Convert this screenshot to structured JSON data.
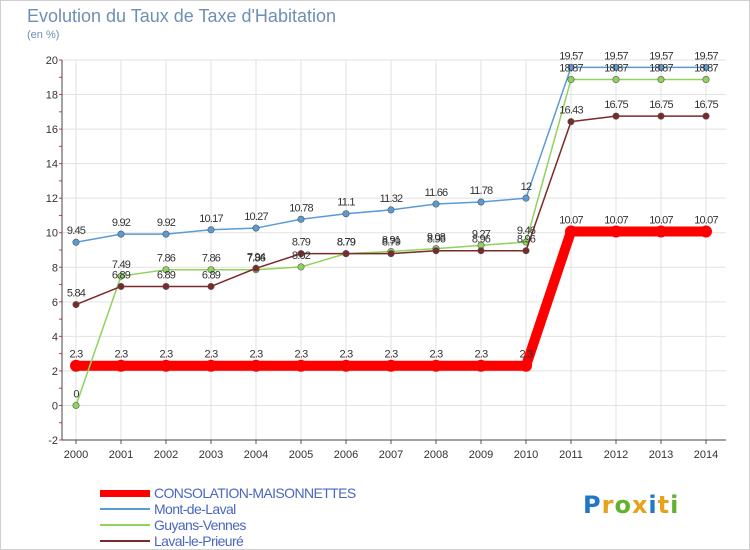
{
  "chart_data": {
    "type": "line",
    "title": "Evolution du Taux de Taxe d'Habitation",
    "subtitle": "(en %)",
    "x": [
      "2000",
      "2001",
      "2002",
      "2003",
      "2004",
      "2005",
      "2006",
      "2007",
      "2008",
      "2009",
      "2010",
      "2011",
      "2012",
      "2013",
      "2014"
    ],
    "ylim": [
      -2,
      20
    ],
    "yticks": [
      -2,
      0,
      2,
      4,
      6,
      8,
      10,
      12,
      14,
      16,
      18,
      20
    ],
    "grid": true,
    "legend": "bottom-left",
    "series": [
      {
        "name": "CONSOLATION-MAISONNETTES",
        "color": "#ff0000",
        "values": [
          2.3,
          2.3,
          2.3,
          2.3,
          2.3,
          2.3,
          2.3,
          2.3,
          2.3,
          2.3,
          2.3,
          10.07,
          10.07,
          10.07,
          10.07
        ],
        "labels": [
          "2.3",
          "2.3",
          "2.3",
          "2.3",
          "2.3",
          "2.3",
          "2.3",
          "2.3",
          "2.3",
          "2.3",
          "2.3",
          "10.07",
          "10.07",
          "10.07",
          "10.07"
        ]
      },
      {
        "name": "Mont-de-Laval",
        "color": "#5b9bd5",
        "values": [
          9.45,
          9.92,
          9.92,
          10.17,
          10.27,
          10.78,
          11.1,
          11.32,
          11.66,
          11.78,
          12,
          19.57,
          19.57,
          19.57,
          19.57
        ],
        "labels": [
          "9.45",
          "9.92",
          "9.92",
          "10.17",
          "10.27",
          "10.78",
          "11.1",
          "11.32",
          "11.66",
          "11.78",
          "12",
          "19.57",
          "19.57",
          "19.57",
          "19.57"
        ]
      },
      {
        "name": "Guyans-Vennes",
        "color": "#8fd35a",
        "values": [
          0,
          7.49,
          7.86,
          7.86,
          7.86,
          8.02,
          8.79,
          8.91,
          9.08,
          9.27,
          9.46,
          18.87,
          18.87,
          18.87,
          18.87
        ],
        "labels": [
          "0",
          "7.49",
          "7.86",
          "7.86",
          "7.86",
          "8.02",
          "8.79",
          "8.91",
          "9.08",
          "9.27",
          "9.46",
          "18.87",
          "18.87",
          "18.87",
          "18.87"
        ]
      },
      {
        "name": "Laval-le-Prieuré",
        "color": "#7a2a2a",
        "values": [
          5.84,
          6.89,
          6.89,
          6.89,
          7.94,
          8.79,
          8.79,
          8.79,
          8.96,
          8.96,
          8.96,
          16.43,
          16.75,
          16.75,
          16.75
        ],
        "labels": [
          "5.84",
          "6.89",
          "6.89",
          "6.89",
          "7.94",
          "8.79",
          "8.79",
          "8.79",
          "8.96",
          "8.96",
          "8.96",
          "16.43",
          "16.75",
          "16.75",
          "16.75"
        ]
      }
    ]
  },
  "logo": {
    "letters": [
      "P",
      "r",
      "o",
      "x",
      "i",
      "t",
      "i"
    ],
    "colors": [
      "#1f77c8",
      "#e5a21a",
      "#62b22f",
      "#e5a21a",
      "#1f77c8",
      "#e5a21a",
      "#62b22f"
    ]
  }
}
